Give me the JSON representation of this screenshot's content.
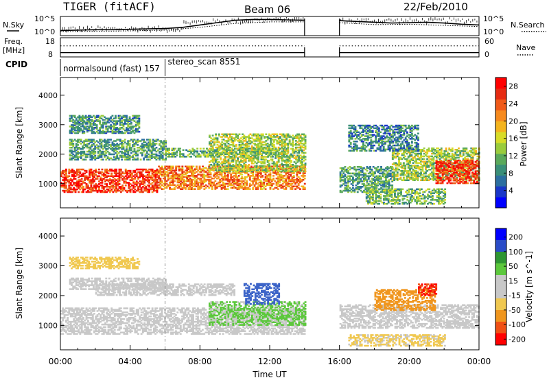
{
  "header": {
    "station": "TIGER (fitACF)",
    "beam": "Beam 06",
    "date": "22/Feb/2010"
  },
  "strip_labels": {
    "nsky": "N.Sky",
    "freq_line1": "Freq.",
    "freq_line2": "[MHz]",
    "cpid": "CPID",
    "nsearch": "N.Search",
    "nave": "Nave"
  },
  "chart_data": [
    {
      "type": "line",
      "panel": "noise",
      "left_label": "N.Sky",
      "right_label": "N.Search",
      "left_ticks": [
        "10^5",
        "10^0"
      ],
      "right_ticks": [
        "10^5",
        "10^0"
      ],
      "log_scale": true,
      "data_gap_ut": [
        14.0,
        16.0
      ],
      "series": [
        {
          "name": "N.Sky",
          "style": "solid",
          "x": [
            0,
            1,
            2,
            3,
            4,
            5,
            6,
            7,
            8,
            9,
            10,
            11,
            12,
            13,
            14,
            16,
            17,
            18,
            19,
            20,
            21,
            22,
            23,
            24
          ],
          "y": [
            0.8,
            0.9,
            1.0,
            1.0,
            1.1,
            1.2,
            1.3,
            1.6,
            2.2,
            2.8,
            3.4,
            3.6,
            3.6,
            3.5,
            3.4,
            3.3,
            3.1,
            2.9,
            2.7,
            2.8,
            2.9,
            2.7,
            2.4,
            2.2
          ]
        },
        {
          "name": "N.Search",
          "style": "dotted",
          "x": [
            0,
            2,
            4,
            6,
            8,
            10,
            12,
            14,
            16,
            18,
            20,
            22,
            24
          ],
          "y": [
            0.5,
            0.6,
            0.7,
            0.9,
            1.6,
            2.6,
            3.0,
            3.0,
            2.8,
            2.3,
            2.4,
            2.1,
            1.8
          ]
        }
      ]
    },
    {
      "type": "line",
      "panel": "frequency",
      "left_label": "Freq. [MHz]",
      "right_label": "Nave",
      "left_ticks": [
        "18",
        "8"
      ],
      "right_ticks": [
        "60",
        "0"
      ],
      "data_gap_ut": [
        14.0,
        16.0
      ],
      "series": [
        {
          "name": "Freq.",
          "style": "solid",
          "x": [
            0,
            14,
            16,
            24
          ],
          "y": [
            9.5,
            9.5,
            9.5,
            9.5
          ]
        },
        {
          "name": "Nave",
          "style": "dotted",
          "x": [
            0,
            14,
            16,
            24
          ],
          "y": [
            36,
            36,
            36,
            36
          ]
        }
      ]
    },
    {
      "type": "table",
      "panel": "cpid",
      "label": "CPID",
      "segments": [
        {
          "name": "normalsound (fast) 157",
          "start_ut": 0,
          "end_ut": 6.0
        },
        {
          "name": "stereo_scan 8551",
          "start_ut": 6.0,
          "end_ut": 24
        }
      ]
    },
    {
      "type": "heatmap",
      "panel": "power",
      "ylabel": "Slant Range [km]",
      "yticks": [
        1000,
        2000,
        3000,
        4000
      ],
      "ylim": [
        180,
        4600
      ],
      "xlim": [
        0,
        24
      ],
      "data_gap_ut": [
        14.0,
        16.0
      ],
      "colorbar": {
        "label": "Power [dB]",
        "ticks": [
          4,
          8,
          12,
          16,
          20,
          24,
          28
        ],
        "range": [
          0,
          30
        ],
        "colors": [
          "#0000ff",
          "#1a37c8",
          "#2c6fa0",
          "#3a8f78",
          "#5aa95a",
          "#9acc3c",
          "#d8dc28",
          "#f4b41e",
          "#f68a1e",
          "#f05a19",
          "#e62b12",
          "#ff0000"
        ]
      },
      "bands": [
        {
          "t0": 0.0,
          "t1": 5.5,
          "r0": 700,
          "r1": 1500,
          "level": 26
        },
        {
          "t0": 5.5,
          "t1": 14.0,
          "r0": 800,
          "r1": 1600,
          "level": 22
        },
        {
          "t0": 0.5,
          "t1": 6.0,
          "r0": 1800,
          "r1": 2500,
          "level": 10
        },
        {
          "t0": 6.0,
          "t1": 13.0,
          "r0": 1900,
          "r1": 2200,
          "level": 12
        },
        {
          "t0": 0.5,
          "t1": 4.5,
          "r0": 2700,
          "r1": 3300,
          "level": 9
        },
        {
          "t0": 8.5,
          "t1": 14.0,
          "r0": 1400,
          "r1": 2700,
          "level": 14
        },
        {
          "t0": 16.0,
          "t1": 19.0,
          "r0": 700,
          "r1": 1600,
          "level": 10
        },
        {
          "t0": 19.0,
          "t1": 24.0,
          "r0": 1100,
          "r1": 2200,
          "level": 14
        },
        {
          "t0": 21.5,
          "t1": 24.0,
          "r0": 1000,
          "r1": 1800,
          "level": 26
        },
        {
          "t0": 16.5,
          "t1": 20.5,
          "r0": 2100,
          "r1": 3000,
          "level": 8
        },
        {
          "t0": 17.5,
          "t1": 22.0,
          "r0": 300,
          "r1": 800,
          "level": 12
        }
      ]
    },
    {
      "type": "heatmap",
      "panel": "velocity",
      "ylabel": "Slant Range [km]",
      "yticks": [
        1000,
        2000,
        3000,
        4000
      ],
      "ylim": [
        180,
        4600
      ],
      "xlim": [
        0,
        24
      ],
      "xlabel": "Time UT",
      "xticks": [
        "00:00",
        "04:00",
        "08:00",
        "12:00",
        "16:00",
        "20:00",
        "00:00"
      ],
      "data_gap_ut": [
        14.0,
        16.0
      ],
      "colorbar": {
        "label": "Velocity [m s^-1]",
        "ticks": [
          200,
          100,
          50,
          15,
          -15,
          -50,
          -100,
          -200
        ],
        "range": [
          -250,
          250
        ],
        "colors": [
          "#ff0000",
          "#f05014",
          "#f0961e",
          "#f0c850",
          "#c8c8c8",
          "#c8c8c8",
          "#5cc83c",
          "#2e9632",
          "#3c64c8",
          "#0000ff"
        ]
      },
      "bands": [
        {
          "t0": 0.0,
          "t1": 14.0,
          "r0": 700,
          "r1": 1600,
          "level": 0
        },
        {
          "t0": 0.5,
          "t1": 6.0,
          "r0": 2200,
          "r1": 2600,
          "level": 0
        },
        {
          "t0": 0.5,
          "t1": 4.5,
          "r0": 2900,
          "r1": 3300,
          "level": -80
        },
        {
          "t0": 8.5,
          "t1": 14.0,
          "r0": 1000,
          "r1": 1800,
          "level": 60
        },
        {
          "t0": 10.5,
          "t1": 12.5,
          "r0": 1700,
          "r1": 2400,
          "level": 180
        },
        {
          "t0": 16.0,
          "t1": 24.0,
          "r0": 900,
          "r1": 1700,
          "level": 0
        },
        {
          "t0": 18.0,
          "t1": 21.5,
          "r0": 1500,
          "r1": 2200,
          "level": -120
        },
        {
          "t0": 20.5,
          "t1": 21.5,
          "r0": 2000,
          "r1": 2400,
          "level": -200
        },
        {
          "t0": 16.5,
          "t1": 22.0,
          "r0": 300,
          "r1": 700,
          "level": -60
        },
        {
          "t0": 2.0,
          "t1": 10.0,
          "r0": 2000,
          "r1": 2400,
          "level": 20
        }
      ]
    }
  ]
}
